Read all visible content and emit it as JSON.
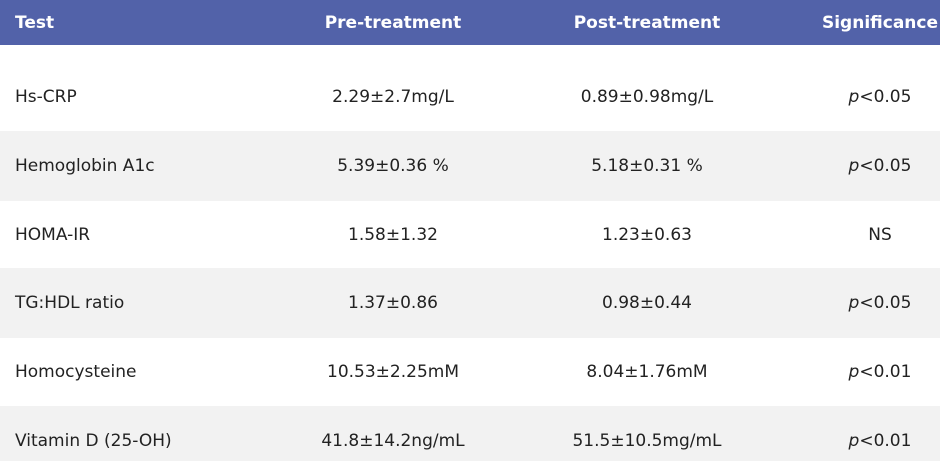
{
  "table": {
    "header": [
      "Test",
      "Pre-treatment",
      "Post-treatment",
      "Significance"
    ],
    "rows": [
      {
        "test": "Hs-CRP",
        "pre": "2.29±2.7mg/L",
        "post": "0.89±0.98mg/L",
        "significance": {
          "symbol": "p",
          "value": "<0.05"
        }
      },
      {
        "test": "Hemoglobin A1c",
        "pre": "5.39±0.36 %",
        "post": "5.18±0.31 %",
        "significance": {
          "symbol": "p",
          "value": "<0.05"
        }
      },
      {
        "test": "HOMA-IR",
        "pre": "1.58±1.32",
        "post": "1.23±0.63",
        "significance": {
          "value": "NS"
        }
      },
      {
        "test": "TG:HDL ratio",
        "pre": "1.37±0.86",
        "post": "0.98±0.44",
        "significance": {
          "symbol": "p",
          "value": "<0.05"
        }
      },
      {
        "test": "Homocysteine",
        "pre": "10.53±2.25mM",
        "post": "8.04±1.76mM",
        "significance": {
          "symbol": "p",
          "value": "<0.01"
        }
      },
      {
        "test": "Vitamin D (25-OH)",
        "pre": "41.8±14.2ng/mL",
        "post": "51.5±10.5mg/mL",
        "significance": {
          "symbol": "p",
          "value": "<0.01"
        }
      }
    ]
  }
}
